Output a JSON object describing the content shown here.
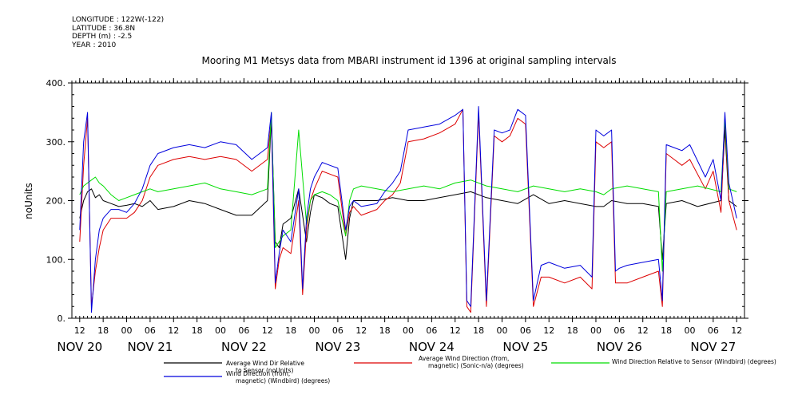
{
  "meta": {
    "longitude": "LONGITUDE : 122W(-122)",
    "latitude": "LATITUDE : 36.8N",
    "depth": "DEPTH (m) : -2.5",
    "year": "YEAR : 2010"
  },
  "chart_data": {
    "type": "line",
    "title": "Mooring M1 Metsys data from MBARI instrument id 1396 at original sampling intervals",
    "ylabel": "noUnits",
    "xlabel": "",
    "ylim": [
      0,
      400
    ],
    "xlim_hours": [
      -2,
      170
    ],
    "grid": false,
    "legend_position": "bottom",
    "y_ticks": [
      "0.",
      "100.",
      "200.",
      "300.",
      "400."
    ],
    "x_ticks": [
      "12",
      "18",
      "00",
      "06",
      "12",
      "18",
      "00",
      "06",
      "12",
      "18",
      "00",
      "06",
      "12",
      "18",
      "00",
      "06",
      "12",
      "18",
      "00",
      "06",
      "12",
      "18",
      "00",
      "06",
      "12",
      "18",
      "00",
      "06",
      "12"
    ],
    "day_labels": [
      "NOV 20",
      "NOV 21",
      "NOV 22",
      "NOV 23",
      "NOV 24",
      "NOV 25",
      "NOV 26",
      "NOV 27"
    ],
    "series": [
      {
        "name": "Average Wind Dir Relative to Sensor (noUnits)",
        "color": "#000000",
        "points": [
          [
            0,
            170
          ],
          [
            1,
            200
          ],
          [
            2,
            215
          ],
          [
            3,
            220
          ],
          [
            4,
            205
          ],
          [
            5,
            210
          ],
          [
            6,
            200
          ],
          [
            8,
            195
          ],
          [
            10,
            190
          ],
          [
            12,
            192
          ],
          [
            14,
            195
          ],
          [
            16,
            190
          ],
          [
            18,
            200
          ],
          [
            20,
            185
          ],
          [
            24,
            190
          ],
          [
            28,
            200
          ],
          [
            32,
            195
          ],
          [
            36,
            185
          ],
          [
            40,
            175
          ],
          [
            44,
            175
          ],
          [
            48,
            200
          ],
          [
            49,
            340
          ],
          [
            50,
            130
          ],
          [
            51,
            120
          ],
          [
            52,
            160
          ],
          [
            54,
            170
          ],
          [
            56,
            220
          ],
          [
            58,
            130
          ],
          [
            59,
            180
          ],
          [
            60,
            210
          ],
          [
            62,
            205
          ],
          [
            64,
            195
          ],
          [
            66,
            190
          ],
          [
            68,
            100
          ],
          [
            69,
            170
          ],
          [
            70,
            200
          ],
          [
            72,
            200
          ],
          [
            76,
            200
          ],
          [
            80,
            205
          ],
          [
            84,
            200
          ],
          [
            88,
            200
          ],
          [
            92,
            205
          ],
          [
            96,
            210
          ],
          [
            100,
            215
          ],
          [
            104,
            205
          ],
          [
            108,
            200
          ],
          [
            112,
            195
          ],
          [
            116,
            210
          ],
          [
            120,
            195
          ],
          [
            124,
            200
          ],
          [
            128,
            195
          ],
          [
            132,
            190
          ],
          [
            134,
            190
          ],
          [
            136,
            200
          ],
          [
            140,
            195
          ],
          [
            144,
            195
          ],
          [
            148,
            190
          ],
          [
            149,
            100
          ],
          [
            150,
            195
          ],
          [
            154,
            200
          ],
          [
            158,
            190
          ],
          [
            164,
            200
          ],
          [
            165,
            320
          ],
          [
            166,
            200
          ],
          [
            168,
            190
          ]
        ]
      },
      {
        "name": "Average Wind Direction (from, magnetic) (Sonic-n/a) (degrees)",
        "color": "#dd0000",
        "points": [
          [
            0,
            130
          ],
          [
            1,
            260
          ],
          [
            2,
            340
          ],
          [
            3,
            20
          ],
          [
            4,
            80
          ],
          [
            5,
            120
          ],
          [
            6,
            150
          ],
          [
            8,
            170
          ],
          [
            10,
            170
          ],
          [
            12,
            170
          ],
          [
            14,
            180
          ],
          [
            16,
            200
          ],
          [
            18,
            240
          ],
          [
            20,
            260
          ],
          [
            24,
            270
          ],
          [
            28,
            275
          ],
          [
            32,
            270
          ],
          [
            36,
            275
          ],
          [
            40,
            270
          ],
          [
            44,
            250
          ],
          [
            48,
            270
          ],
          [
            49,
            340
          ],
          [
            50,
            50
          ],
          [
            51,
            100
          ],
          [
            52,
            120
          ],
          [
            54,
            110
          ],
          [
            56,
            200
          ],
          [
            57,
            40
          ],
          [
            58,
            150
          ],
          [
            59,
            200
          ],
          [
            60,
            220
          ],
          [
            62,
            250
          ],
          [
            64,
            245
          ],
          [
            66,
            240
          ],
          [
            68,
            140
          ],
          [
            69,
            180
          ],
          [
            70,
            190
          ],
          [
            72,
            175
          ],
          [
            76,
            185
          ],
          [
            78,
            200
          ],
          [
            80,
            210
          ],
          [
            82,
            230
          ],
          [
            84,
            300
          ],
          [
            88,
            305
          ],
          [
            92,
            315
          ],
          [
            96,
            330
          ],
          [
            98,
            355
          ],
          [
            99,
            20
          ],
          [
            100,
            10
          ],
          [
            102,
            350
          ],
          [
            104,
            20
          ],
          [
            106,
            310
          ],
          [
            108,
            300
          ],
          [
            110,
            310
          ],
          [
            112,
            340
          ],
          [
            114,
            330
          ],
          [
            116,
            20
          ],
          [
            118,
            70
          ],
          [
            120,
            70
          ],
          [
            124,
            60
          ],
          [
            128,
            70
          ],
          [
            131,
            50
          ],
          [
            132,
            300
          ],
          [
            134,
            290
          ],
          [
            136,
            300
          ],
          [
            137,
            60
          ],
          [
            138,
            60
          ],
          [
            140,
            60
          ],
          [
            144,
            70
          ],
          [
            148,
            80
          ],
          [
            149,
            20
          ],
          [
            150,
            280
          ],
          [
            152,
            270
          ],
          [
            154,
            260
          ],
          [
            156,
            270
          ],
          [
            160,
            220
          ],
          [
            162,
            250
          ],
          [
            164,
            180
          ],
          [
            165,
            340
          ],
          [
            166,
            200
          ],
          [
            168,
            150
          ]
        ]
      },
      {
        "name": "Wind Direction Relative to Sensor (Windbird) (degrees)",
        "color": "#00dd00",
        "points": [
          [
            0,
            210
          ],
          [
            1,
            225
          ],
          [
            2,
            230
          ],
          [
            3,
            235
          ],
          [
            4,
            240
          ],
          [
            5,
            230
          ],
          [
            6,
            225
          ],
          [
            8,
            210
          ],
          [
            10,
            200
          ],
          [
            12,
            205
          ],
          [
            14,
            210
          ],
          [
            16,
            215
          ],
          [
            18,
            220
          ],
          [
            20,
            215
          ],
          [
            24,
            220
          ],
          [
            28,
            225
          ],
          [
            32,
            230
          ],
          [
            36,
            220
          ],
          [
            40,
            215
          ],
          [
            44,
            210
          ],
          [
            48,
            220
          ],
          [
            49,
            350
          ],
          [
            50,
            120
          ],
          [
            52,
            140
          ],
          [
            54,
            150
          ],
          [
            56,
            320
          ],
          [
            58,
            160
          ],
          [
            59,
            200
          ],
          [
            60,
            210
          ],
          [
            62,
            215
          ],
          [
            64,
            210
          ],
          [
            66,
            200
          ],
          [
            68,
            140
          ],
          [
            69,
            200
          ],
          [
            70,
            220
          ],
          [
            72,
            225
          ],
          [
            76,
            220
          ],
          [
            80,
            215
          ],
          [
            84,
            220
          ],
          [
            88,
            225
          ],
          [
            92,
            220
          ],
          [
            96,
            230
          ],
          [
            100,
            235
          ],
          [
            104,
            225
          ],
          [
            108,
            220
          ],
          [
            112,
            215
          ],
          [
            116,
            225
          ],
          [
            120,
            220
          ],
          [
            124,
            215
          ],
          [
            128,
            220
          ],
          [
            132,
            215
          ],
          [
            134,
            210
          ],
          [
            136,
            220
          ],
          [
            140,
            225
          ],
          [
            144,
            220
          ],
          [
            148,
            215
          ],
          [
            149,
            80
          ],
          [
            150,
            215
          ],
          [
            154,
            220
          ],
          [
            158,
            225
          ],
          [
            164,
            215
          ],
          [
            165,
            340
          ],
          [
            166,
            220
          ],
          [
            168,
            215
          ]
        ]
      },
      {
        "name": "Wind Direction (from, magnetic) (Windbird) (degrees)",
        "color": "#0000dd",
        "points": [
          [
            0,
            150
          ],
          [
            1,
            300
          ],
          [
            2,
            350
          ],
          [
            3,
            10
          ],
          [
            4,
            100
          ],
          [
            5,
            150
          ],
          [
            6,
            170
          ],
          [
            8,
            185
          ],
          [
            10,
            185
          ],
          [
            12,
            180
          ],
          [
            14,
            195
          ],
          [
            16,
            220
          ],
          [
            18,
            260
          ],
          [
            20,
            280
          ],
          [
            24,
            290
          ],
          [
            28,
            295
          ],
          [
            32,
            290
          ],
          [
            36,
            300
          ],
          [
            40,
            295
          ],
          [
            44,
            270
          ],
          [
            48,
            290
          ],
          [
            49,
            350
          ],
          [
            50,
            60
          ],
          [
            51,
            110
          ],
          [
            52,
            150
          ],
          [
            54,
            130
          ],
          [
            56,
            220
          ],
          [
            57,
            50
          ],
          [
            58,
            170
          ],
          [
            59,
            220
          ],
          [
            60,
            240
          ],
          [
            62,
            265
          ],
          [
            64,
            260
          ],
          [
            66,
            255
          ],
          [
            68,
            150
          ],
          [
            69,
            190
          ],
          [
            70,
            200
          ],
          [
            72,
            190
          ],
          [
            76,
            195
          ],
          [
            78,
            215
          ],
          [
            80,
            230
          ],
          [
            82,
            250
          ],
          [
            84,
            320
          ],
          [
            88,
            325
          ],
          [
            92,
            330
          ],
          [
            96,
            345
          ],
          [
            98,
            355
          ],
          [
            99,
            30
          ],
          [
            100,
            20
          ],
          [
            102,
            360
          ],
          [
            104,
            30
          ],
          [
            106,
            320
          ],
          [
            108,
            315
          ],
          [
            110,
            320
          ],
          [
            112,
            355
          ],
          [
            114,
            345
          ],
          [
            116,
            30
          ],
          [
            118,
            90
          ],
          [
            120,
            95
          ],
          [
            124,
            85
          ],
          [
            128,
            90
          ],
          [
            131,
            70
          ],
          [
            132,
            320
          ],
          [
            134,
            310
          ],
          [
            136,
            320
          ],
          [
            137,
            80
          ],
          [
            138,
            85
          ],
          [
            140,
            90
          ],
          [
            144,
            95
          ],
          [
            148,
            100
          ],
          [
            149,
            30
          ],
          [
            150,
            295
          ],
          [
            152,
            290
          ],
          [
            154,
            285
          ],
          [
            156,
            295
          ],
          [
            160,
            240
          ],
          [
            162,
            270
          ],
          [
            164,
            200
          ],
          [
            165,
            350
          ],
          [
            166,
            230
          ],
          [
            168,
            170
          ]
        ]
      }
    ]
  }
}
